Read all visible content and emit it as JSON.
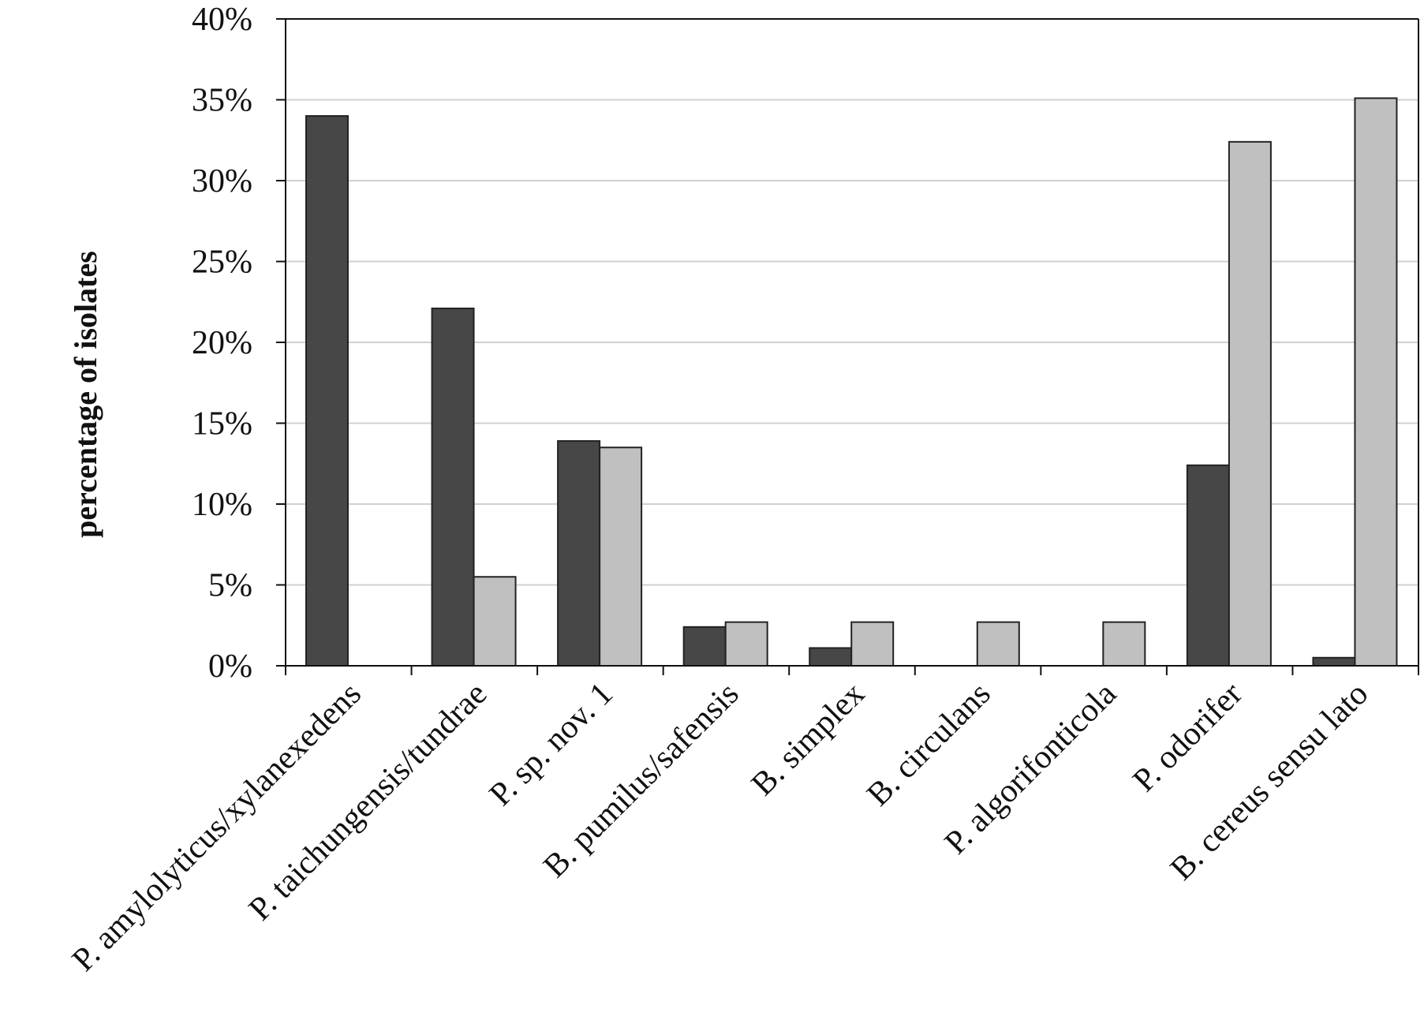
{
  "chart_data": {
    "type": "bar",
    "ylabel": "percentage of isolates",
    "xlabel": "",
    "ylim": [
      0,
      40
    ],
    "yticks": [
      "0%",
      "5%",
      "10%",
      "15%",
      "20%",
      "25%",
      "30%",
      "35%",
      "40%"
    ],
    "ytick_values": [
      0,
      5,
      10,
      15,
      20,
      25,
      30,
      35,
      40
    ],
    "grid": true,
    "categories": [
      "P. amylolyticus/xylanexedens",
      "P. taichungensis/tundrae",
      "P. sp. nov. 1",
      "B. pumilus/safensis",
      "B. simplex",
      "B. circulans",
      "P. algorifonticola",
      "P. odorifer",
      "B. cereus  sensu lato"
    ],
    "series": [
      {
        "color": "#474747",
        "values": [
          34.0,
          22.1,
          13.9,
          2.4,
          1.1,
          0,
          0,
          12.4,
          0.5
        ]
      },
      {
        "color": "#c0c0c0",
        "values": [
          0,
          5.5,
          13.5,
          2.7,
          2.7,
          2.7,
          2.7,
          32.4,
          35.1
        ]
      }
    ]
  }
}
